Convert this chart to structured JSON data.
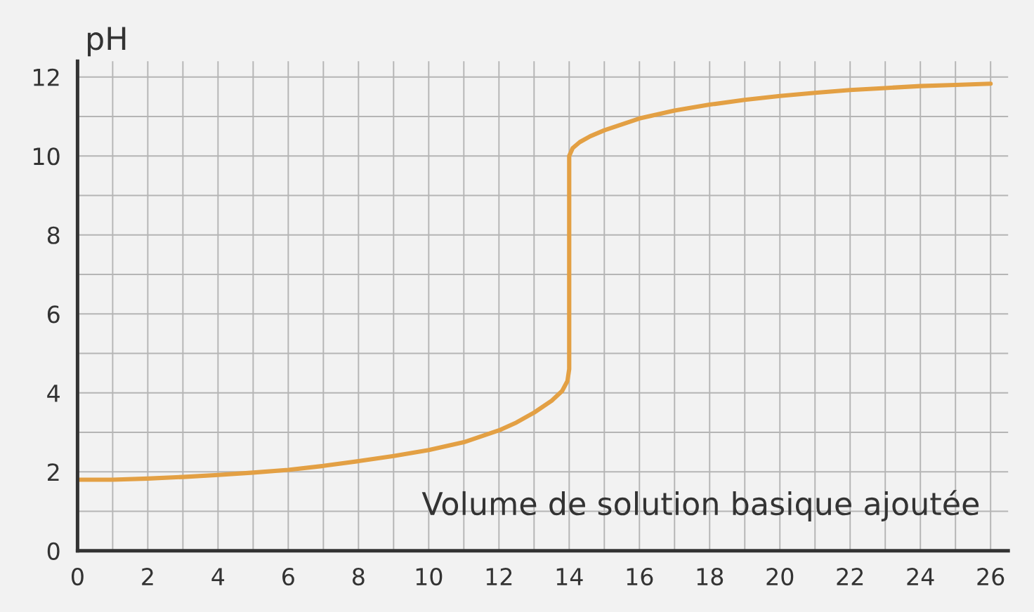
{
  "chart_data": {
    "type": "line",
    "xlabel": "Volume de solution basique ajoutée",
    "ylabel": "pH",
    "series": [
      {
        "color": "#e3a044",
        "x": [
          0,
          1,
          2,
          3,
          4,
          5,
          6,
          7,
          8,
          9,
          10,
          11,
          12,
          12.5,
          13,
          13.5,
          13.8,
          13.95,
          14,
          14,
          14.1,
          14.3,
          14.6,
          15,
          16,
          17,
          18,
          19,
          20,
          21,
          22,
          23,
          24,
          25,
          26
        ],
        "values": [
          1.8,
          1.8,
          1.83,
          1.87,
          1.92,
          1.98,
          2.05,
          2.15,
          2.27,
          2.4,
          2.55,
          2.75,
          3.05,
          3.25,
          3.5,
          3.8,
          4.05,
          4.3,
          4.6,
          10.0,
          10.2,
          10.35,
          10.5,
          10.65,
          10.95,
          11.15,
          11.3,
          11.42,
          11.52,
          11.6,
          11.67,
          11.72,
          11.77,
          11.8,
          11.83
        ]
      }
    ],
    "xlim": [
      0,
      26.5
    ],
    "ylim": [
      0,
      12.4
    ],
    "xticks": [
      0,
      2,
      4,
      6,
      8,
      10,
      12,
      14,
      16,
      18,
      20,
      22,
      24,
      26
    ],
    "yticks": [
      0,
      2,
      4,
      6,
      8,
      10,
      12
    ],
    "grid": true,
    "line_style": "solid",
    "marker": "none"
  }
}
